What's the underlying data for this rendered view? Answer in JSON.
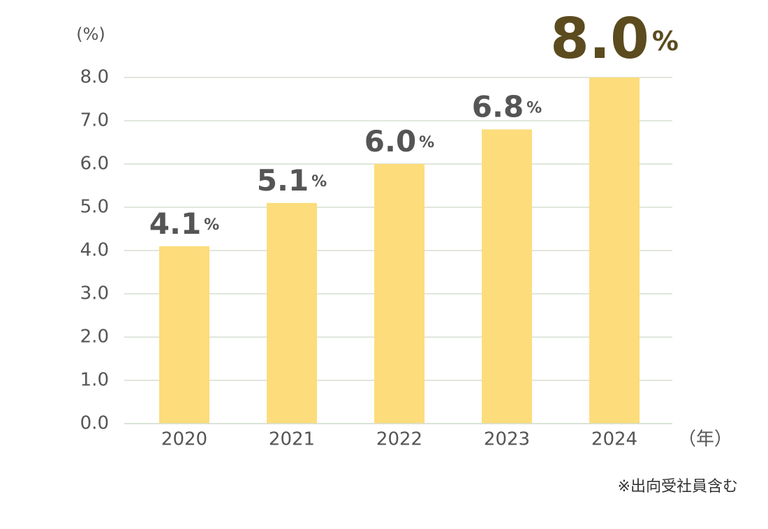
{
  "chart_data": {
    "type": "bar",
    "y_label": "(%)",
    "x_label": "（年）",
    "note": "※出向受社員含む",
    "categories": [
      "2020",
      "2021",
      "2022",
      "2023",
      "2024"
    ],
    "values": [
      4.1,
      5.1,
      6.0,
      6.8,
      8.0
    ],
    "value_labels": [
      "4.1%",
      "5.1%",
      "6.0%",
      "6.8%",
      "8.0%"
    ],
    "color": "#fddc7b",
    "value_label_color": "#555555",
    "highlight_color": "#5b4b1f",
    "ylim": [
      0,
      8
    ],
    "yticks": [
      {
        "value": 0,
        "label": "0.0"
      },
      {
        "value": 1,
        "label": "1.0"
      },
      {
        "value": 2,
        "label": "2.0"
      },
      {
        "value": 3,
        "label": "3.0"
      },
      {
        "value": 4,
        "label": "4.0"
      },
      {
        "value": 5,
        "label": "5.0"
      },
      {
        "value": 6,
        "label": "6.0"
      },
      {
        "value": 7,
        "label": "7.0"
      },
      {
        "value": 8,
        "label": "8.0"
      }
    ],
    "grid": true
  }
}
